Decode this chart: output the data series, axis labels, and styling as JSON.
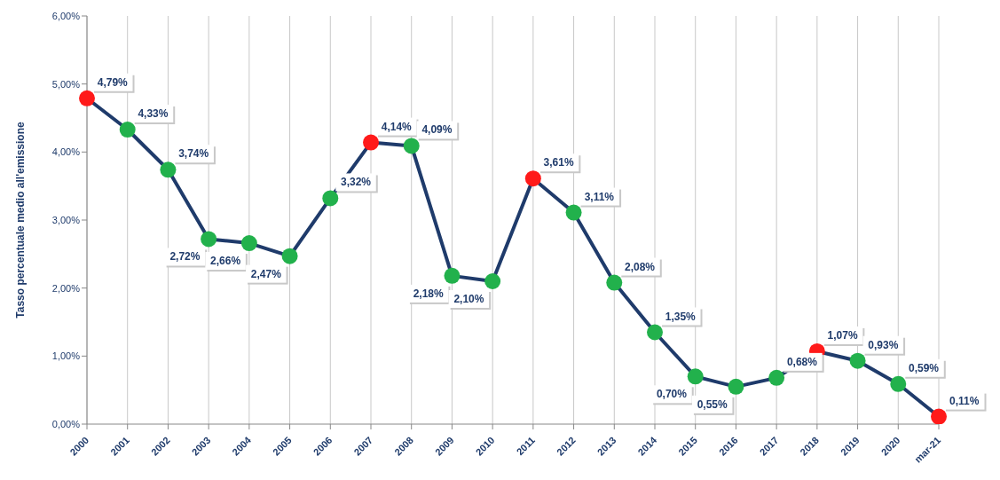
{
  "chart_data": {
    "type": "line",
    "ylabel": "Tasso percentuale medio all'emissione",
    "categories": [
      "2000",
      "2001",
      "2002",
      "2003",
      "2004",
      "2005",
      "2006",
      "2007",
      "2008",
      "2009",
      "2010",
      "2011",
      "2012",
      "2013",
      "2014",
      "2015",
      "2016",
      "2017",
      "2018",
      "2019",
      "2020",
      "mar-21"
    ],
    "series": [
      {
        "color": "#1f3b6b",
        "values": [
          4.79,
          4.33,
          3.74,
          2.72,
          2.66,
          2.47,
          3.32,
          4.14,
          4.09,
          2.18,
          2.1,
          3.61,
          3.11,
          2.08,
          1.35,
          0.7,
          0.55,
          0.68,
          1.07,
          0.93,
          0.59,
          0.11
        ],
        "colors": [
          "#ff1a1a",
          "#22b14c",
          "#22b14c",
          "#22b14c",
          "#22b14c",
          "#22b14c",
          "#22b14c",
          "#ff1a1a",
          "#22b14c",
          "#22b14c",
          "#22b14c",
          "#ff1a1a",
          "#22b14c",
          "#22b14c",
          "#22b14c",
          "#22b14c",
          "#22b14c",
          "#22b14c",
          "#ff1a1a",
          "#22b14c",
          "#22b14c",
          "#ff1a1a"
        ],
        "value_labels": [
          "4,79%",
          "4,33%",
          "3,74%",
          "2,72%",
          "2,66%",
          "2,47%",
          "3,32%",
          "4,14%",
          "4,09%",
          "2,18%",
          "2,10%",
          "3,61%",
          "3,11%",
          "2,08%",
          "1,35%",
          "0,70%",
          "0,55%",
          "0,68%",
          "1,07%",
          "0,93%",
          "0,59%",
          "0,11%"
        ]
      }
    ],
    "ylim": [
      0,
      6
    ],
    "yticks": [
      {
        "value": 0,
        "label": "0,00%"
      },
      {
        "value": 1,
        "label": "1,00%"
      },
      {
        "value": 2,
        "label": "2,00%"
      },
      {
        "value": 3,
        "label": "3,00%"
      },
      {
        "value": 4,
        "label": "4,00%"
      },
      {
        "value": 5,
        "label": "5,00%"
      },
      {
        "value": 6,
        "label": "6,00%"
      }
    ],
    "grid": "x",
    "marker": "circle",
    "line_style": "solid"
  }
}
